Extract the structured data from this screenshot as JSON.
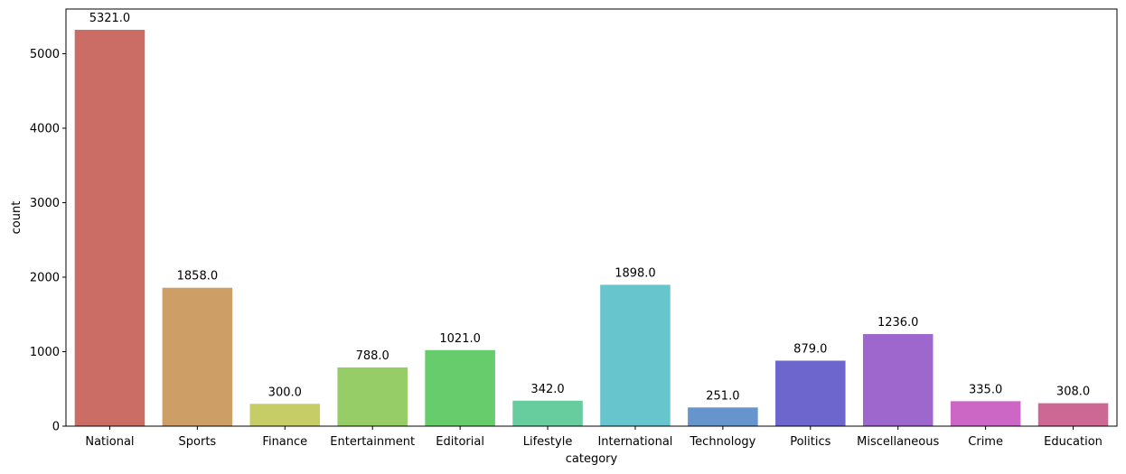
{
  "chart_data": {
    "type": "bar",
    "title": "",
    "xlabel": "category",
    "ylabel": "count",
    "ylim": [
      0,
      5600
    ],
    "yticks": [
      0,
      1000,
      2000,
      3000,
      4000,
      5000
    ],
    "categories": [
      "National",
      "Sports",
      "Finance",
      "Entertainment",
      "Editorial",
      "Lifestyle",
      "International",
      "Technology",
      "Politics",
      "Miscellaneous",
      "Crime",
      "Education"
    ],
    "values": [
      5321,
      1858,
      300,
      788,
      1021,
      342,
      1898,
      251,
      879,
      1236,
      335,
      308
    ],
    "value_labels": [
      "5321.0",
      "1858.0",
      "300.0",
      "788.0",
      "1021.0",
      "342.0",
      "1898.0",
      "251.0",
      "879.0",
      "1236.0",
      "335.0",
      "308.0"
    ],
    "colors": [
      "#cb6d64",
      "#cd9e66",
      "#c7cd66",
      "#96cd66",
      "#67cd6c",
      "#67cd9e",
      "#67c6cd",
      "#6695cd",
      "#6d67cd",
      "#9e67cd",
      "#cd67c6",
      "#cd6794"
    ],
    "grid": false,
    "legend": "none"
  }
}
